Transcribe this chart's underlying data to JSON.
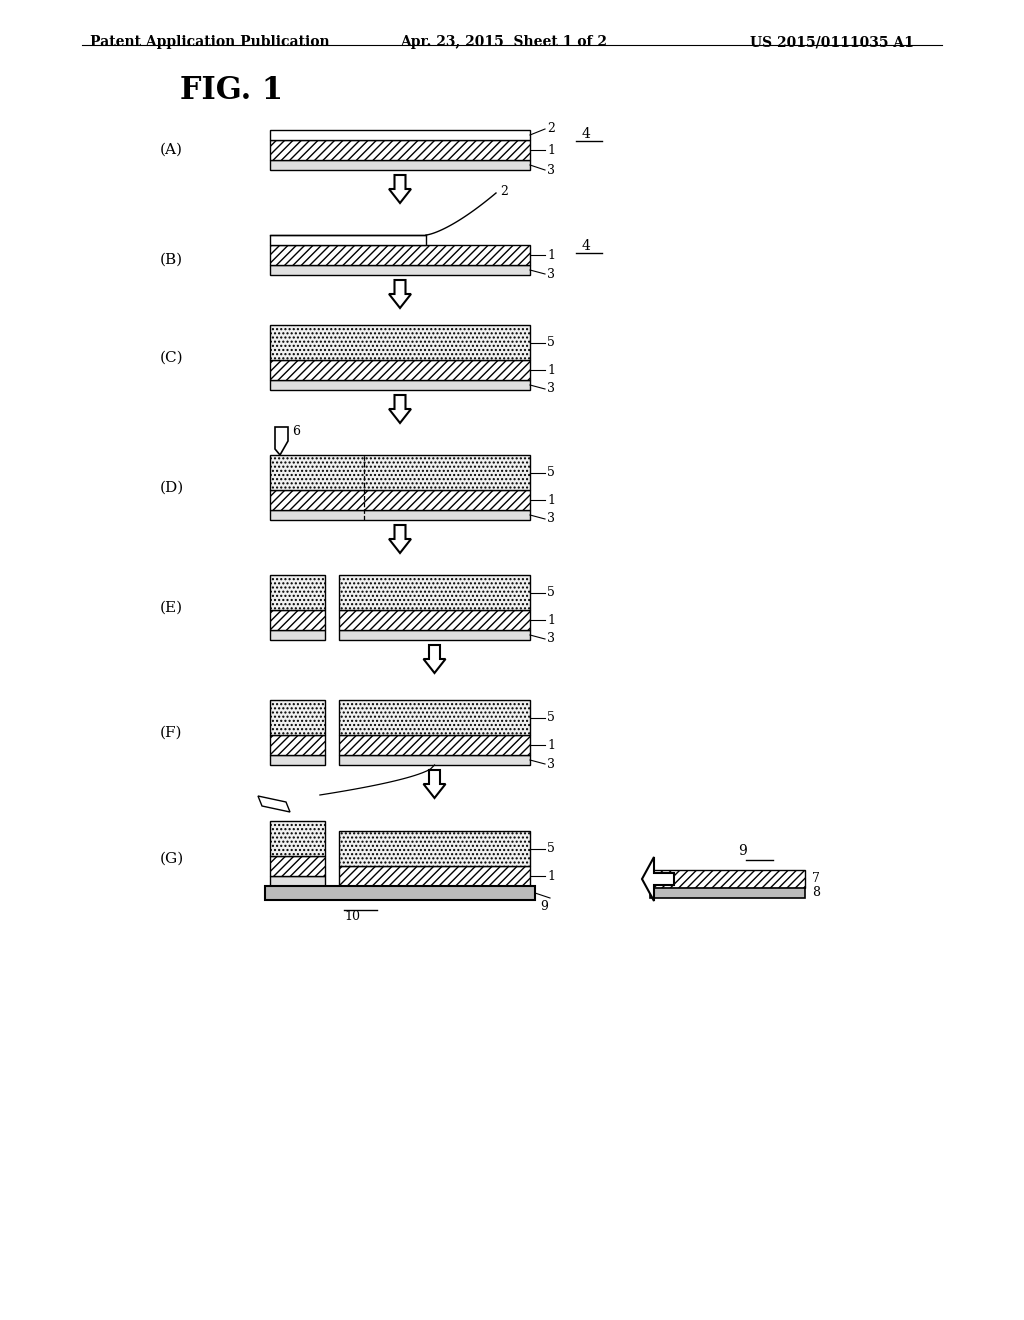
{
  "title": "FIG. 1",
  "header_left": "Patent Application Publication",
  "header_center": "Apr. 23, 2015  Sheet 1 of 2",
  "header_right": "US 2015/0111035 A1",
  "bg_color": "#ffffff",
  "line_color": "#000000",
  "label_fontsize": 10,
  "header_fontsize": 10,
  "title_fontsize": 22
}
